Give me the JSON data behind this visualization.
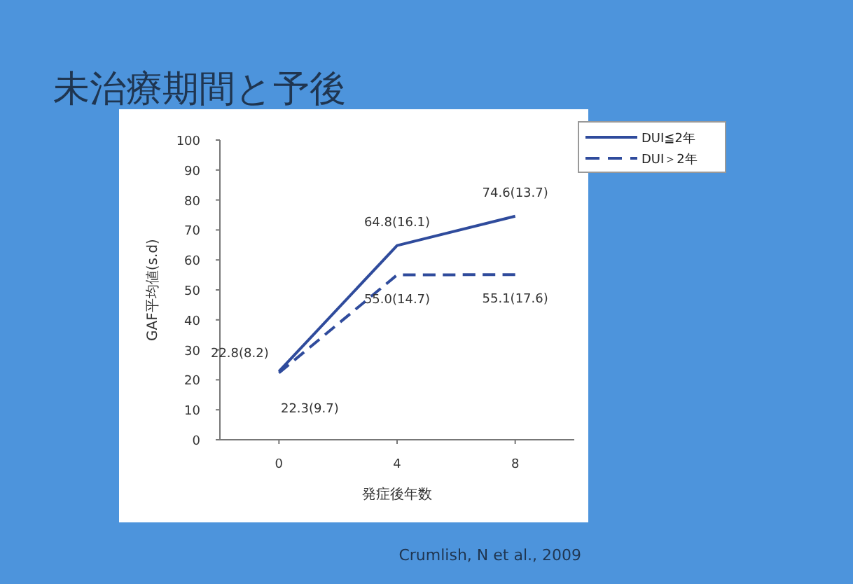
{
  "chart_data": {
    "type": "line",
    "title": "未治療期間と予後",
    "xlabel": "発症後年数",
    "ylabel": "GAF平均値(s.d)",
    "x": [
      0,
      4,
      8
    ],
    "xlim": [
      -2,
      10
    ],
    "xticks": [
      0,
      4,
      8
    ],
    "ylim": [
      0,
      100
    ],
    "yticks": [
      0,
      10,
      20,
      30,
      40,
      50,
      60,
      70,
      80,
      90,
      100
    ],
    "series": [
      {
        "name": "DUI≦2年",
        "color": "#2f4b9c",
        "line_style": "solid",
        "values": [
          22.8,
          64.8,
          74.6
        ],
        "value_labels": [
          "22.8(8.2)",
          "64.8(16.1)",
          "74.6(13.7)"
        ]
      },
      {
        "name": "DUI＞2年",
        "color": "#2f4b9c",
        "line_style": "dashed",
        "values": [
          22.3,
          55.0,
          55.1
        ],
        "value_labels": [
          "22.3(9.7)",
          "55.0(14.7)",
          "55.1(17.6)"
        ]
      }
    ],
    "legend": "top right",
    "grid": false,
    "marker": "none",
    "annotations": [
      "Crumlish, N et al., 2009"
    ]
  }
}
